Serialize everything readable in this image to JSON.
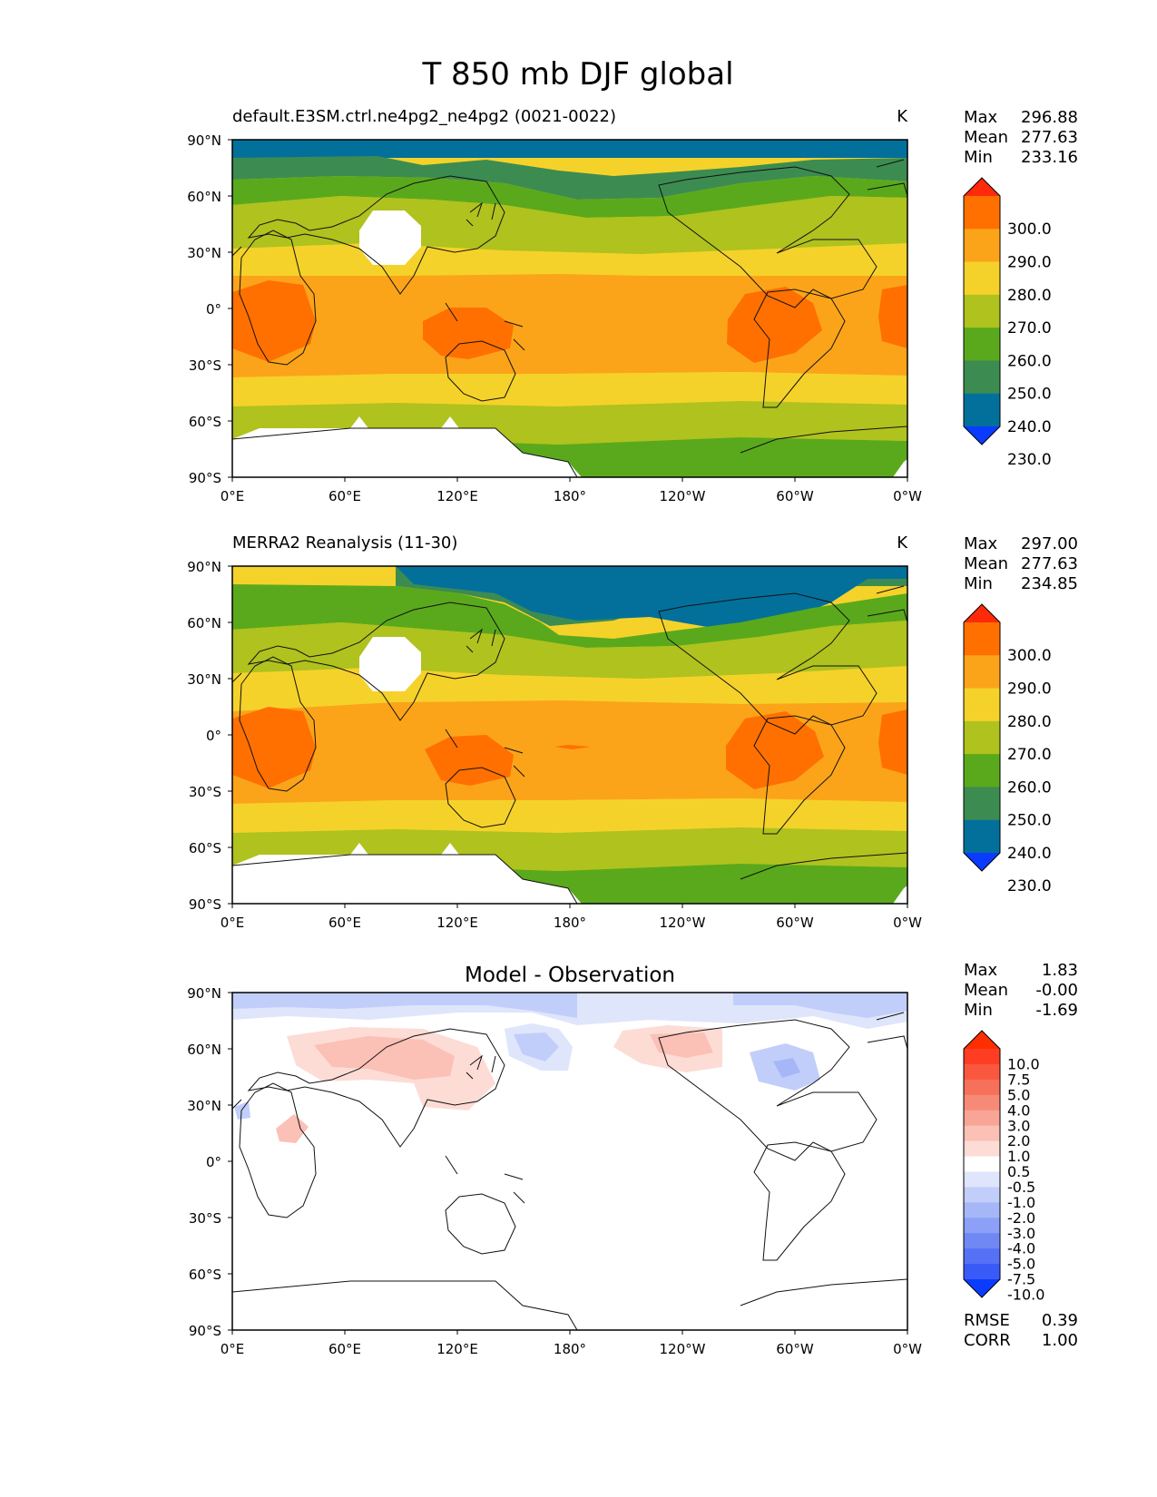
{
  "title": "T 850 mb DJF global",
  "axes": {
    "lat_ticks": [
      "90°N",
      "60°N",
      "30°N",
      "0°",
      "30°S",
      "60°S",
      "90°S"
    ],
    "lon_ticks": [
      "0°E",
      "60°E",
      "120°E",
      "180°",
      "120°W",
      "60°W",
      "0°W"
    ]
  },
  "panels": [
    {
      "name": "model",
      "left_title": "default.E3SM.ctrl.ne4pg2_ne4pg2 (0021-0022)",
      "center_title": "",
      "units": "K",
      "stats": [
        {
          "label": "Max",
          "value": "296.88"
        },
        {
          "label": "Mean",
          "value": "277.63"
        },
        {
          "label": "Min",
          "value": "233.16"
        }
      ]
    },
    {
      "name": "obs",
      "left_title": "MERRA2 Reanalysis (11-30)",
      "center_title": "",
      "units": "K",
      "stats": [
        {
          "label": "Max",
          "value": "297.00"
        },
        {
          "label": "Mean",
          "value": "277.63"
        },
        {
          "label": "Min",
          "value": "234.85"
        }
      ]
    },
    {
      "name": "diff",
      "left_title": "",
      "center_title": "Model - Observation",
      "units": "",
      "stats": [
        {
          "label": "Max",
          "value": "1.83"
        },
        {
          "label": "Mean",
          "value": "-0.00"
        },
        {
          "label": "Min",
          "value": "-1.69"
        }
      ],
      "extra_stats": [
        {
          "label": "RMSE",
          "value": "0.39"
        },
        {
          "label": "CORR",
          "value": "1.00"
        }
      ]
    }
  ],
  "colorbars": {
    "field": {
      "labels": [
        "300.0",
        "290.0",
        "280.0",
        "270.0",
        "260.0",
        "250.0",
        "240.0",
        "230.0"
      ],
      "colors": [
        "#ff2a0a",
        "#ff7000",
        "#fca419",
        "#f5d22a",
        "#afc21e",
        "#5aa91c",
        "#3c8c52",
        "#03709c",
        "#0a3cff"
      ]
    },
    "diff": {
      "labels": [
        "10.0",
        "7.5",
        "5.0",
        "4.0",
        "3.0",
        "2.0",
        "1.0",
        "0.5",
        "-0.5",
        "-1.0",
        "-2.0",
        "-3.0",
        "-4.0",
        "-5.0",
        "-7.5",
        "-10.0"
      ],
      "colors": [
        "#ff2e00",
        "#fe3d22",
        "#f9573e",
        "#f6705a",
        "#f68a76",
        "#f8a496",
        "#fbc0b6",
        "#fddcd5",
        "#ffffff",
        "#dfe5fb",
        "#c2cefa",
        "#a6b7f8",
        "#8ba0f6",
        "#6f88f4",
        "#5571f5",
        "#3a5af8",
        "#0a3cff"
      ]
    }
  },
  "fields": {
    "model": [
      {
        "lat": 85,
        "value": 235
      },
      {
        "lat": 72,
        "value": 245
      },
      {
        "lat": 62,
        "value": 255
      },
      {
        "lat": 50,
        "value": 265
      },
      {
        "lat": 35,
        "value": 275
      },
      {
        "lat": 0,
        "value": 285
      },
      {
        "lat": -30,
        "value": 285
      },
      {
        "lat": -45,
        "value": 275
      },
      {
        "lat": -60,
        "value": 265
      },
      {
        "lat": -75,
        "value": 255
      }
    ],
    "obs": [
      {
        "lat": 85,
        "value": 235
      },
      {
        "lat": 72,
        "value": 245
      },
      {
        "lat": 62,
        "value": 255
      },
      {
        "lat": 50,
        "value": 265
      },
      {
        "lat": 35,
        "value": 275
      },
      {
        "lat": 0,
        "value": 285
      },
      {
        "lat": -30,
        "value": 285
      },
      {
        "lat": -45,
        "value": 275
      },
      {
        "lat": -60,
        "value": 265
      },
      {
        "lat": -75,
        "value": 255
      }
    ],
    "diff_regions": [
      {
        "name": "siberia-warm",
        "value": 1.5
      },
      {
        "name": "canada-warm",
        "value": 1.5
      },
      {
        "name": "arctic-cool",
        "value": -1.5
      },
      {
        "name": "pacific-cool",
        "value": -1.5
      },
      {
        "name": "greenland-cool",
        "value": -1.5
      }
    ]
  }
}
